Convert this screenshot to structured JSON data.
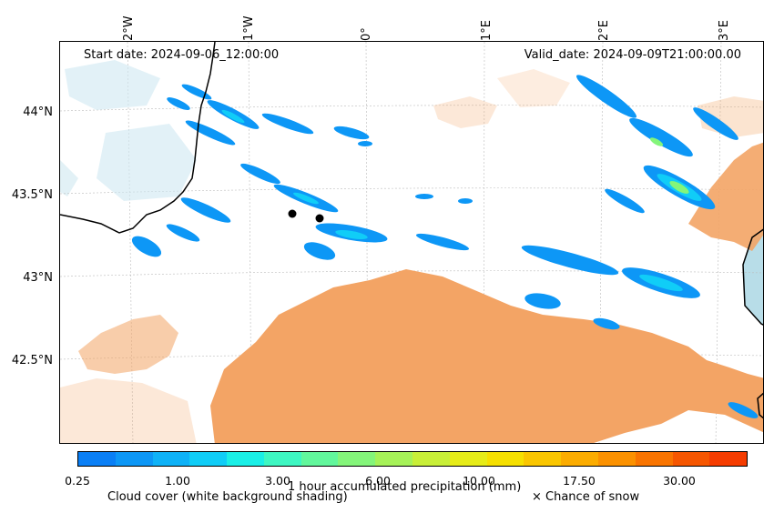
{
  "header": {
    "start_date": "Start date: 2024-09-06_12:00:00",
    "valid_date": "Valid_date: 2024-09-09T21:00:00.00"
  },
  "axes": {
    "lon_ticks": [
      "2°W",
      "1°W",
      "0°",
      "1°E",
      "2°E",
      "3°E"
    ],
    "lat_ticks": [
      "44°N",
      "43.5°N",
      "43°N",
      "42.5°N"
    ]
  },
  "colorbar": {
    "tick_labels": [
      "0.25",
      "1.00",
      "3.00",
      "6.00",
      "10.00",
      "17.50",
      "30.00"
    ],
    "label": "1 hour accumulated precipitation (mm)",
    "colors": [
      "#0a7ff5",
      "#0d97f6",
      "#0fb2f7",
      "#10cdf7",
      "#1aefe6",
      "#3ef7c2",
      "#62f79c",
      "#84f57a",
      "#a6f258",
      "#c8ef38",
      "#e6ec18",
      "#f6e000",
      "#fac600",
      "#fbac00",
      "#fb9100",
      "#f97400",
      "#f65600",
      "#f53c00"
    ]
  },
  "legend": {
    "cloud_cover": "Cloud cover (white background shading)",
    "snow": "× Chance of snow"
  },
  "colors": {
    "cloud": "#f3a465",
    "sea": "#b8dde8",
    "coast": "#000000"
  }
}
